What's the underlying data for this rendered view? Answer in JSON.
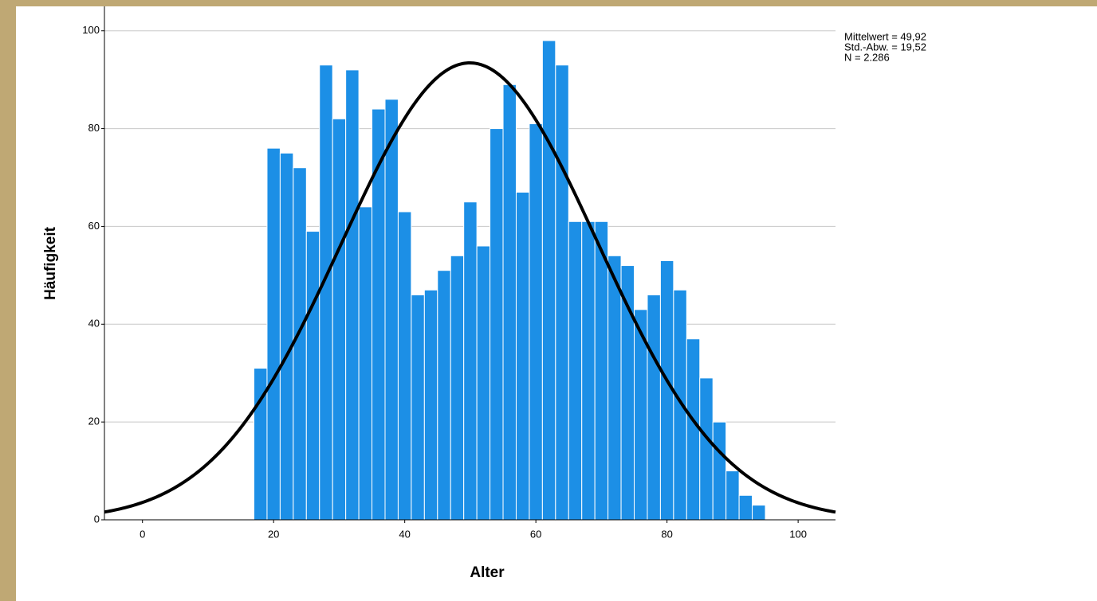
{
  "chart_data": {
    "type": "histogram",
    "x_label": "Alter",
    "y_label": "Häufigkeit",
    "bins": [
      17,
      19,
      21,
      23,
      25,
      27,
      29,
      31,
      33,
      35,
      37,
      39,
      41,
      43,
      45,
      47,
      49,
      51,
      53,
      55,
      57,
      59,
      61,
      63,
      65,
      67,
      69,
      71,
      73,
      75,
      77,
      79,
      81,
      83,
      85,
      87,
      89,
      91,
      93,
      95
    ],
    "values": [
      31,
      76,
      75,
      72,
      59,
      93,
      82,
      92,
      64,
      84,
      86,
      63,
      46,
      47,
      51,
      54,
      65,
      56,
      80,
      89,
      67,
      81,
      98,
      93,
      61,
      61,
      61,
      54,
      52,
      43,
      46,
      53,
      47,
      37,
      29,
      20,
      10,
      5,
      3
    ],
    "color": "#1c8fe6",
    "xlim": [
      -5.8,
      105.7
    ],
    "ylim": [
      0,
      105
    ],
    "xticks": [
      0,
      20,
      40,
      60,
      80,
      100
    ],
    "yticks": [
      0,
      20,
      40,
      60,
      80,
      100
    ],
    "grid": true,
    "stats": [
      {
        "value": 49.92,
        "label": "Mittelwert = 49,92"
      },
      {
        "value": 19.52,
        "label": "Std.-Abw. = 19,52"
      },
      {
        "value": 2286,
        "label": "N = 2.286"
      }
    ],
    "curve_color": "#000000"
  }
}
